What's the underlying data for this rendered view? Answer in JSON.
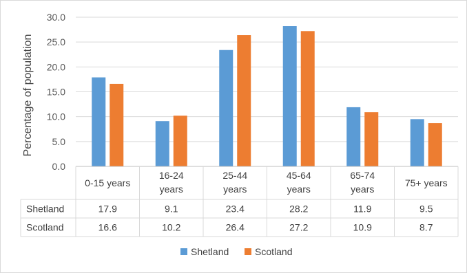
{
  "chart_data": {
    "type": "bar",
    "ylabel": "Percentage of population",
    "ylim": [
      0,
      30
    ],
    "yticks": [
      "0.0",
      "5.0",
      "10.0",
      "15.0",
      "20.0",
      "25.0",
      "30.0"
    ],
    "grid": true,
    "legend_position": "bottom",
    "categories": [
      [
        "0-15 years"
      ],
      [
        "16-24",
        "years"
      ],
      [
        "25-44",
        "years"
      ],
      [
        "45-64",
        "years"
      ],
      [
        "65-74",
        "years"
      ],
      [
        "75+ years"
      ]
    ],
    "series": [
      {
        "name": "Shetland",
        "color": "#5b9bd5",
        "values": [
          17.9,
          9.1,
          23.4,
          28.2,
          11.9,
          9.5
        ],
        "labels": [
          "17.9",
          "9.1",
          "23.4",
          "28.2",
          "11.9",
          "9.5"
        ]
      },
      {
        "name": "Scotland",
        "color": "#ed7d31",
        "values": [
          16.6,
          10.2,
          26.4,
          27.2,
          10.9,
          8.7
        ],
        "labels": [
          "16.6",
          "10.2",
          "26.4",
          "27.2",
          "10.9",
          "8.7"
        ]
      }
    ]
  }
}
